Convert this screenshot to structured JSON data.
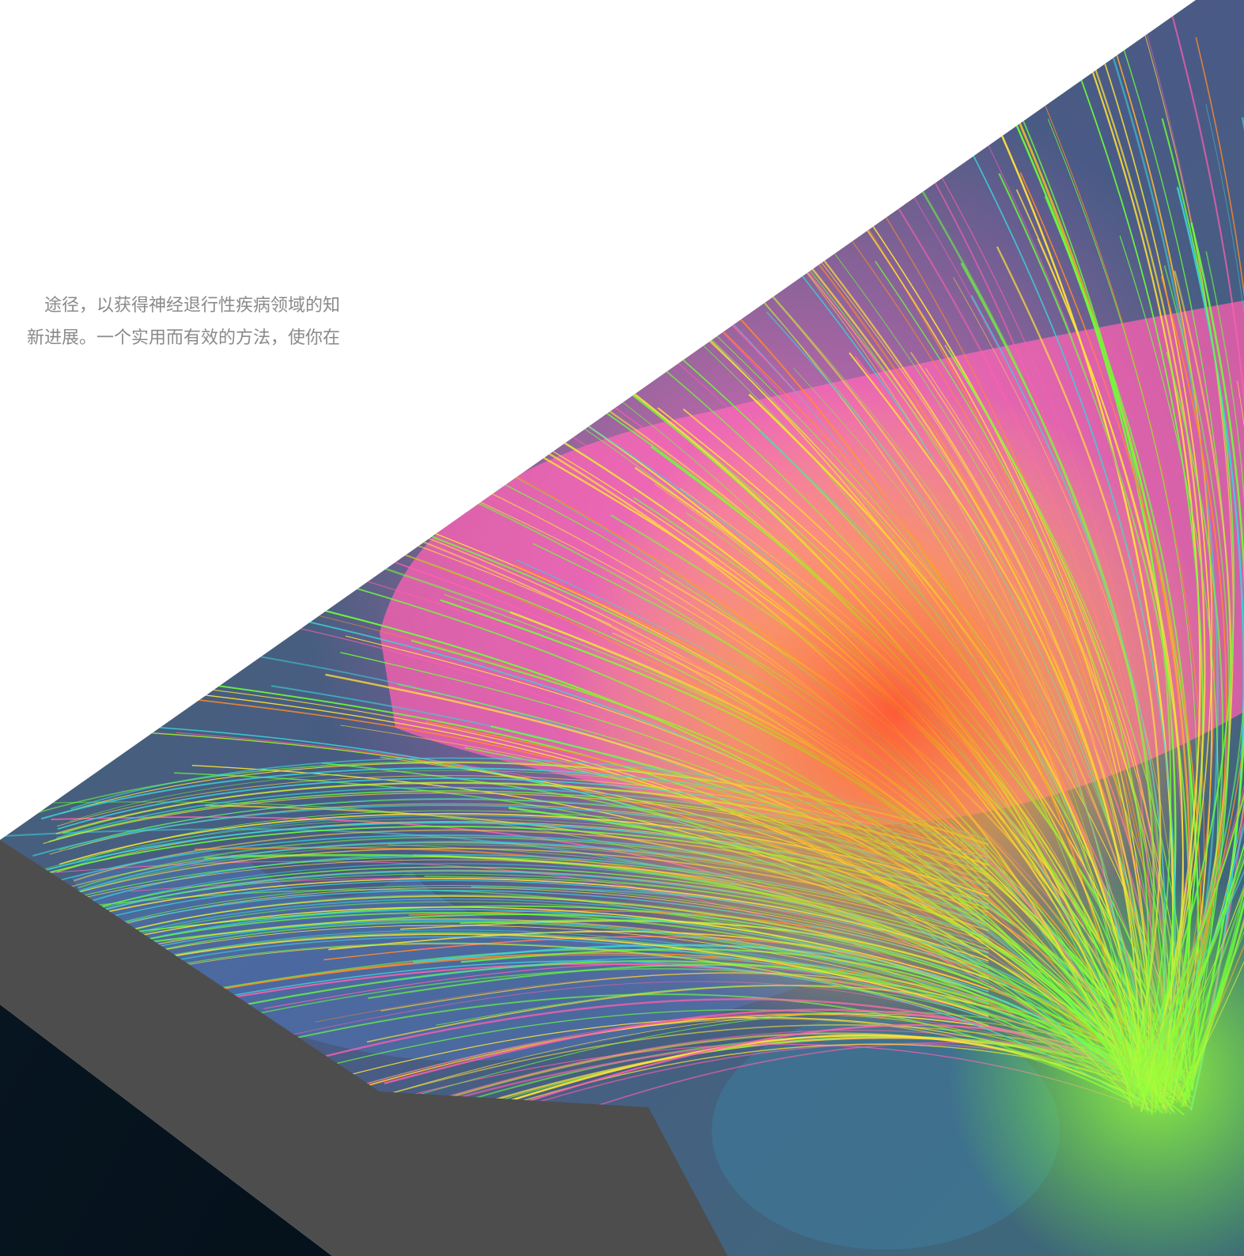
{
  "intro": {
    "line1": "途径，以获得神经退行性疾病领域的知",
    "line2": "新进展。一个实用而有效的方法，使你在"
  },
  "hero_image": {
    "icon": "brain-tractography-image",
    "colors": {
      "dark_wedge": "#04101a",
      "gray_band": "#4d4d4d",
      "brain_base": "#4a5a86",
      "fiber_green": "#6cff3a",
      "fiber_yellow": "#ffe23a",
      "fiber_orange": "#ff8a2a",
      "fiber_pink": "#ff5fb0",
      "fiber_cyan": "#3ad0d8"
    }
  }
}
